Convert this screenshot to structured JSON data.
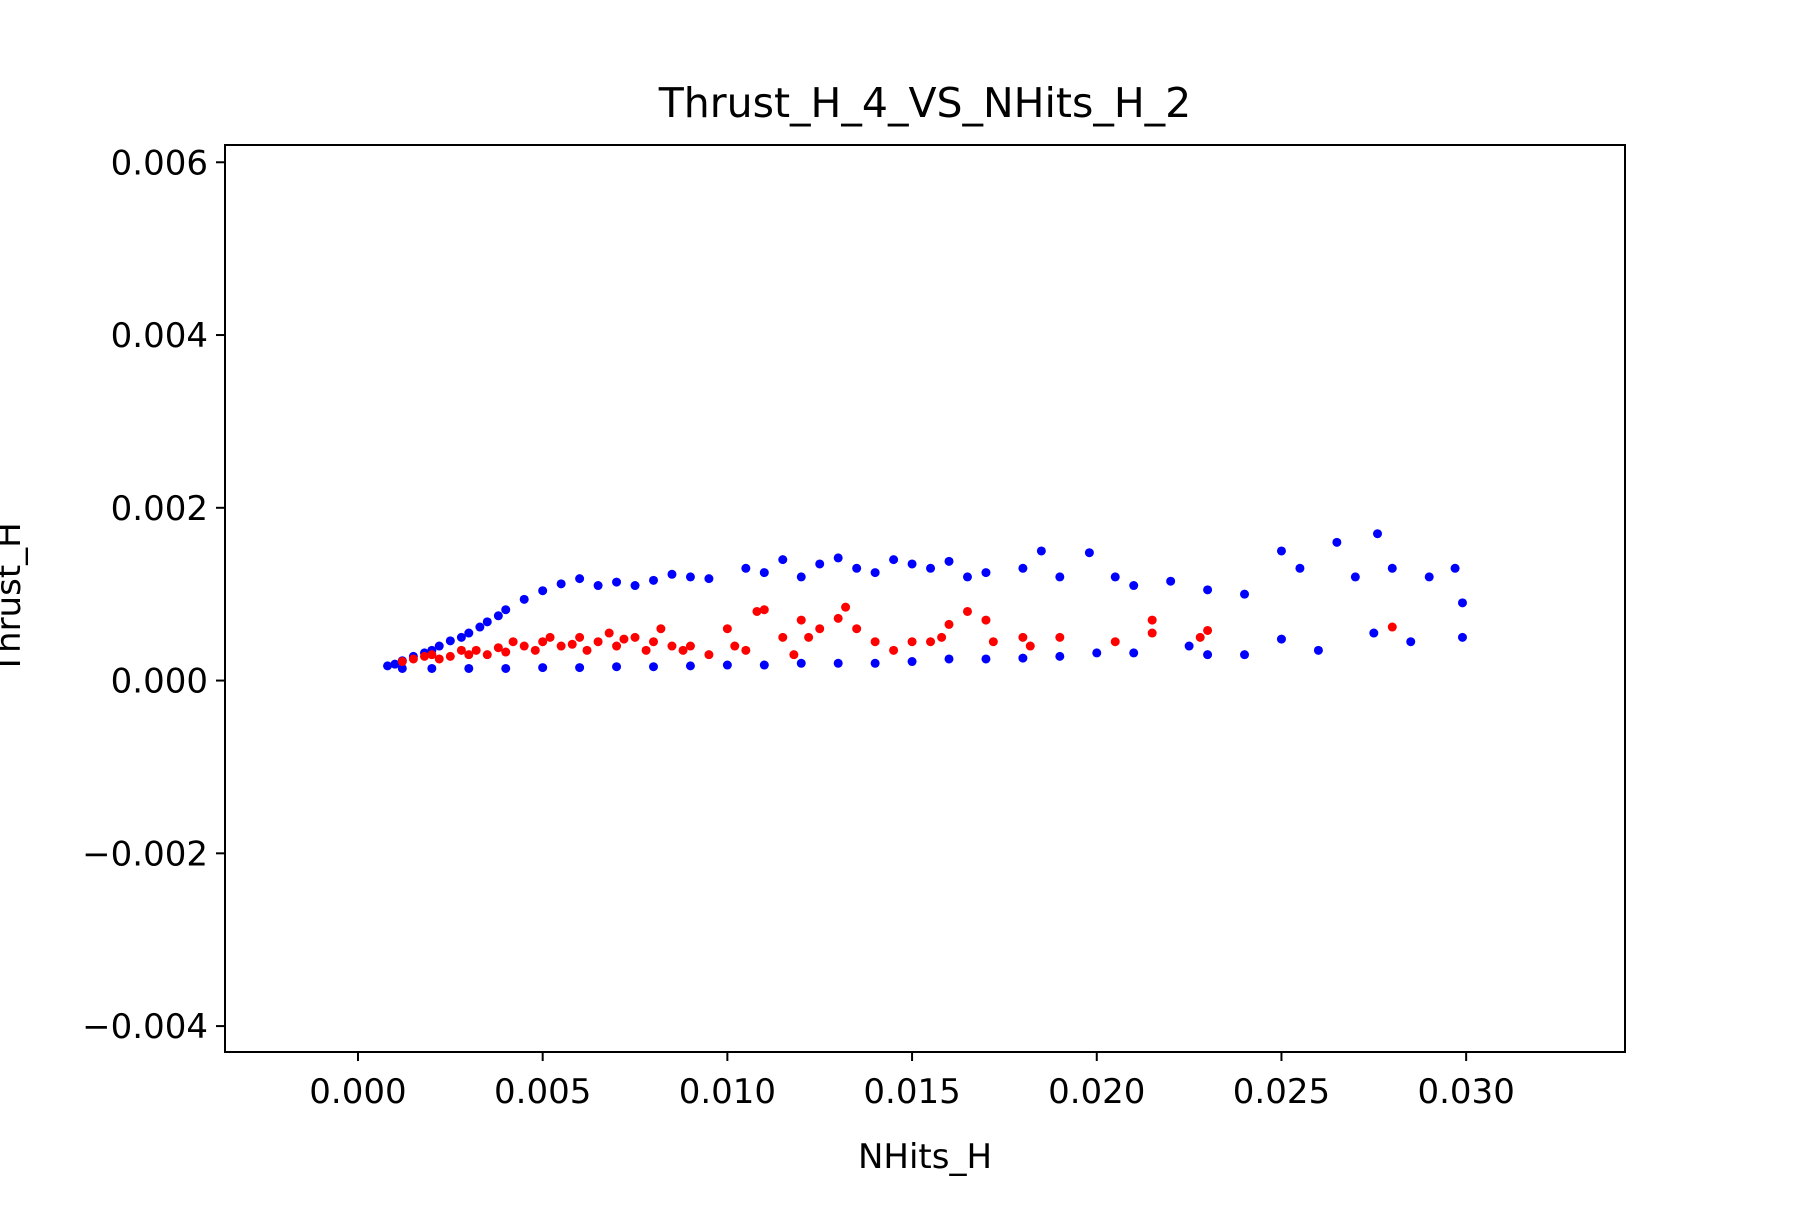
{
  "chart_data": {
    "type": "scatter",
    "title": "Thrust_H_4_VS_NHits_H_2",
    "xlabel": "NHits_H",
    "ylabel": "Thrust_H",
    "xlim": [
      -0.0036,
      0.0343
    ],
    "ylim": [
      -0.0043,
      0.0062
    ],
    "xticks": [
      0.0,
      0.005,
      0.01,
      0.015,
      0.02,
      0.025,
      0.03
    ],
    "xtick_labels": [
      "0.000",
      "0.005",
      "0.010",
      "0.015",
      "0.020",
      "0.025",
      "0.030"
    ],
    "yticks": [
      -0.004,
      -0.002,
      0.0,
      0.002,
      0.004,
      0.006
    ],
    "ytick_labels": [
      "−0.004",
      "−0.002",
      "0.000",
      "0.002",
      "0.004",
      "0.006"
    ],
    "grid": false,
    "legend": false,
    "series": [
      {
        "color": "#0000ff",
        "points": [
          [
            0.0008,
            0.00017
          ],
          [
            0.001,
            0.00019
          ],
          [
            0.0012,
            0.00023
          ],
          [
            0.0015,
            0.00028
          ],
          [
            0.0018,
            0.00032
          ],
          [
            0.002,
            0.00035
          ],
          [
            0.0022,
            0.0004
          ],
          [
            0.0025,
            0.00046
          ],
          [
            0.0028,
            0.0005
          ],
          [
            0.003,
            0.00055
          ],
          [
            0.0033,
            0.00062
          ],
          [
            0.0035,
            0.00068
          ],
          [
            0.0038,
            0.00075
          ],
          [
            0.004,
            0.00082
          ],
          [
            0.0045,
            0.00094
          ],
          [
            0.005,
            0.00104
          ],
          [
            0.0055,
            0.00112
          ],
          [
            0.006,
            0.00118
          ],
          [
            0.0065,
            0.0011
          ],
          [
            0.007,
            0.00114
          ],
          [
            0.0075,
            0.0011
          ],
          [
            0.008,
            0.00116
          ],
          [
            0.0085,
            0.00123
          ],
          [
            0.009,
            0.0012
          ],
          [
            0.0095,
            0.00118
          ],
          [
            0.0105,
            0.0013
          ],
          [
            0.011,
            0.00125
          ],
          [
            0.0115,
            0.0014
          ],
          [
            0.012,
            0.0012
          ],
          [
            0.0125,
            0.00135
          ],
          [
            0.013,
            0.00142
          ],
          [
            0.0135,
            0.0013
          ],
          [
            0.014,
            0.00125
          ],
          [
            0.0145,
            0.0014
          ],
          [
            0.015,
            0.00135
          ],
          [
            0.0155,
            0.0013
          ],
          [
            0.016,
            0.00138
          ],
          [
            0.0165,
            0.0012
          ],
          [
            0.017,
            0.00125
          ],
          [
            0.018,
            0.0013
          ],
          [
            0.0185,
            0.0015
          ],
          [
            0.019,
            0.0012
          ],
          [
            0.0198,
            0.00148
          ],
          [
            0.0205,
            0.0012
          ],
          [
            0.021,
            0.0011
          ],
          [
            0.022,
            0.00115
          ],
          [
            0.023,
            0.00105
          ],
          [
            0.024,
            0.001
          ],
          [
            0.025,
            0.0015
          ],
          [
            0.0255,
            0.0013
          ],
          [
            0.0265,
            0.0016
          ],
          [
            0.027,
            0.0012
          ],
          [
            0.0276,
            0.0017
          ],
          [
            0.028,
            0.0013
          ],
          [
            0.029,
            0.0012
          ],
          [
            0.0297,
            0.0013
          ],
          [
            0.0299,
            0.0009
          ],
          [
            0.0299,
            0.0005
          ],
          [
            0.0285,
            0.00045
          ],
          [
            0.0275,
            0.00055
          ],
          [
            0.026,
            0.00035
          ],
          [
            0.025,
            0.00048
          ],
          [
            0.024,
            0.0003
          ],
          [
            0.023,
            0.0003
          ],
          [
            0.0225,
            0.0004
          ],
          [
            0.021,
            0.00032
          ],
          [
            0.02,
            0.00032
          ],
          [
            0.019,
            0.00028
          ],
          [
            0.018,
            0.00026
          ],
          [
            0.017,
            0.00025
          ],
          [
            0.016,
            0.00025
          ],
          [
            0.015,
            0.00022
          ],
          [
            0.014,
            0.0002
          ],
          [
            0.013,
            0.0002
          ],
          [
            0.012,
            0.0002
          ],
          [
            0.011,
            0.00018
          ],
          [
            0.01,
            0.00018
          ],
          [
            0.009,
            0.00017
          ],
          [
            0.008,
            0.00016
          ],
          [
            0.007,
            0.00016
          ],
          [
            0.006,
            0.00015
          ],
          [
            0.005,
            0.00015
          ],
          [
            0.004,
            0.00014
          ],
          [
            0.003,
            0.00014
          ],
          [
            0.002,
            0.00014
          ],
          [
            0.0012,
            0.00014
          ]
        ]
      },
      {
        "color": "#ff0000",
        "points": [
          [
            0.0012,
            0.00022
          ],
          [
            0.0015,
            0.00025
          ],
          [
            0.0018,
            0.00028
          ],
          [
            0.002,
            0.0003
          ],
          [
            0.0022,
            0.00025
          ],
          [
            0.0025,
            0.00028
          ],
          [
            0.0028,
            0.00035
          ],
          [
            0.003,
            0.0003
          ],
          [
            0.0032,
            0.00035
          ],
          [
            0.0035,
            0.0003
          ],
          [
            0.0038,
            0.00038
          ],
          [
            0.004,
            0.00033
          ],
          [
            0.0042,
            0.00045
          ],
          [
            0.0045,
            0.0004
          ],
          [
            0.0048,
            0.00035
          ],
          [
            0.005,
            0.00045
          ],
          [
            0.0052,
            0.0005
          ],
          [
            0.0055,
            0.0004
          ],
          [
            0.0058,
            0.00042
          ],
          [
            0.006,
            0.0005
          ],
          [
            0.0062,
            0.00035
          ],
          [
            0.0065,
            0.00045
          ],
          [
            0.0068,
            0.00055
          ],
          [
            0.007,
            0.0004
          ],
          [
            0.0072,
            0.00048
          ],
          [
            0.0075,
            0.0005
          ],
          [
            0.0078,
            0.00035
          ],
          [
            0.008,
            0.00045
          ],
          [
            0.0082,
            0.0006
          ],
          [
            0.0085,
            0.0004
          ],
          [
            0.0088,
            0.00035
          ],
          [
            0.009,
            0.0004
          ],
          [
            0.0095,
            0.0003
          ],
          [
            0.01,
            0.0006
          ],
          [
            0.0102,
            0.0004
          ],
          [
            0.0105,
            0.00035
          ],
          [
            0.0108,
            0.0008
          ],
          [
            0.011,
            0.00082
          ],
          [
            0.0115,
            0.0005
          ],
          [
            0.0118,
            0.0003
          ],
          [
            0.012,
            0.0007
          ],
          [
            0.0122,
            0.0005
          ],
          [
            0.0125,
            0.0006
          ],
          [
            0.013,
            0.00072
          ],
          [
            0.0132,
            0.00085
          ],
          [
            0.0135,
            0.0006
          ],
          [
            0.014,
            0.00045
          ],
          [
            0.0145,
            0.00035
          ],
          [
            0.015,
            0.00045
          ],
          [
            0.0155,
            0.00045
          ],
          [
            0.0158,
            0.0005
          ],
          [
            0.016,
            0.00065
          ],
          [
            0.0165,
            0.0008
          ],
          [
            0.017,
            0.0007
          ],
          [
            0.0172,
            0.00045
          ],
          [
            0.018,
            0.0005
          ],
          [
            0.0182,
            0.0004
          ],
          [
            0.019,
            0.0005
          ],
          [
            0.0205,
            0.00045
          ],
          [
            0.0215,
            0.0007
          ],
          [
            0.0215,
            0.00055
          ],
          [
            0.0228,
            0.0005
          ],
          [
            0.023,
            0.00058
          ],
          [
            0.028,
            0.00062
          ]
        ]
      }
    ]
  }
}
